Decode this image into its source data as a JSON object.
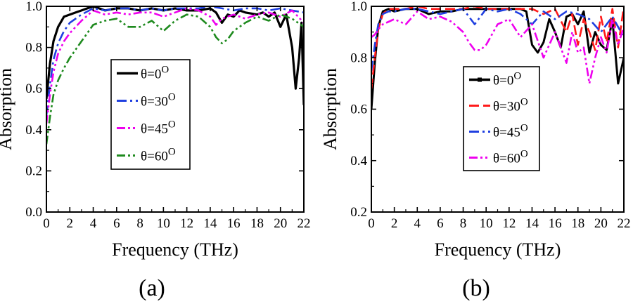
{
  "chart_data": [
    {
      "type": "line",
      "panel_label": "(a)",
      "xlabel": "Frequency (THz)",
      "ylabel": "Absorption",
      "xlim": [
        0,
        22
      ],
      "ylim": [
        0.0,
        1.0
      ],
      "xticks": [
        0,
        2,
        4,
        6,
        8,
        10,
        12,
        14,
        16,
        18,
        20,
        22
      ],
      "yticks": [
        0.0,
        0.2,
        0.4,
        0.6,
        0.8,
        1.0
      ],
      "ytick_labels": [
        "0.0",
        "0.2",
        "0.4",
        "0.6",
        "0.8",
        "1.0"
      ],
      "legend_position": "center-left",
      "series": [
        {
          "name": "θ=0",
          "superscript": "O",
          "color": "#000000",
          "dash": "",
          "width": 3.2,
          "x": [
            0,
            0.3,
            0.6,
            1,
            1.5,
            2,
            2.5,
            3,
            3.5,
            4,
            4.5,
            5,
            6,
            7,
            8,
            9,
            10,
            11,
            12,
            13,
            14,
            14.5,
            15,
            15.5,
            16,
            16.5,
            17,
            18,
            18.5,
            19,
            19.5,
            20,
            20.5,
            21,
            21.3,
            21.6,
            21.8,
            22
          ],
          "y": [
            0.55,
            0.72,
            0.83,
            0.9,
            0.95,
            0.96,
            0.97,
            0.98,
            0.99,
            1.0,
            0.99,
            0.98,
            0.99,
            0.99,
            0.98,
            0.99,
            0.98,
            0.99,
            0.98,
            0.98,
            0.99,
            0.97,
            0.92,
            0.96,
            0.95,
            0.98,
            0.97,
            0.96,
            0.97,
            0.95,
            0.97,
            0.9,
            0.96,
            0.8,
            0.6,
            0.75,
            0.92,
            0.52
          ]
        },
        {
          "name": "θ=30",
          "superscript": "O",
          "color": "#1f3fe0",
          "dash": "14 5 3 5",
          "width": 2.6,
          "x": [
            0,
            0.3,
            0.6,
            1,
            1.5,
            2,
            3,
            4,
            5,
            6,
            7,
            8,
            9,
            10,
            11,
            12,
            13,
            14,
            15,
            16,
            17,
            18,
            19,
            20,
            21,
            22
          ],
          "y": [
            0.47,
            0.62,
            0.74,
            0.82,
            0.88,
            0.92,
            0.96,
            0.99,
            0.98,
            0.99,
            0.99,
            0.98,
            0.99,
            0.98,
            0.99,
            0.99,
            0.99,
            1.0,
            0.99,
            0.98,
            0.99,
            0.99,
            0.98,
            0.99,
            0.98,
            0.97
          ]
        },
        {
          "name": "θ=45",
          "superscript": "O",
          "color": "#ee00ee",
          "dash": "12 4 3 4 3 4",
          "width": 2.6,
          "x": [
            0,
            0.3,
            0.6,
            1,
            1.5,
            2,
            3,
            4,
            5,
            6,
            7,
            8,
            9,
            10,
            11,
            12,
            13,
            14,
            14.5,
            15,
            16,
            17,
            18,
            19,
            20,
            21,
            22
          ],
          "y": [
            0.43,
            0.57,
            0.68,
            0.77,
            0.83,
            0.87,
            0.93,
            0.98,
            0.96,
            0.97,
            0.96,
            0.97,
            0.97,
            0.95,
            0.97,
            0.99,
            0.98,
            0.95,
            0.91,
            0.94,
            0.96,
            0.94,
            0.96,
            0.97,
            0.95,
            0.98,
            0.92
          ]
        },
        {
          "name": "θ=60",
          "superscript": "O",
          "color": "#1e8a1e",
          "dash": "12 4 3 4 3 4",
          "width": 2.6,
          "x": [
            0,
            0.3,
            0.6,
            1,
            1.5,
            2,
            3,
            4,
            5,
            6,
            7,
            8,
            9,
            10,
            11,
            12,
            13,
            14,
            14.5,
            15,
            15.5,
            16,
            17,
            18,
            19,
            20,
            21,
            22
          ],
          "y": [
            0.33,
            0.46,
            0.57,
            0.64,
            0.7,
            0.75,
            0.83,
            0.91,
            0.93,
            0.94,
            0.9,
            0.9,
            0.93,
            0.88,
            0.93,
            0.96,
            0.95,
            0.9,
            0.85,
            0.82,
            0.84,
            0.88,
            0.92,
            0.95,
            0.93,
            0.96,
            0.94,
            0.9
          ]
        }
      ]
    },
    {
      "type": "line",
      "panel_label": "(b)",
      "xlabel": "Frequency (THz)",
      "ylabel": "Absorption",
      "xlim": [
        0,
        22
      ],
      "ylim": [
        0.2,
        1.0
      ],
      "xticks": [
        0,
        2,
        4,
        6,
        8,
        10,
        12,
        14,
        16,
        18,
        20,
        22
      ],
      "yticks": [
        0.2,
        0.4,
        0.6,
        0.8,
        1.0
      ],
      "ytick_labels": [
        "0.2",
        "0.4",
        "0.6",
        "0.8",
        "1.0"
      ],
      "legend_position": "center-left",
      "series": [
        {
          "name": "θ=0",
          "superscript": "O",
          "color": "#000000",
          "dash": "",
          "width": 3.0,
          "marker": "square",
          "x": [
            0,
            0.3,
            0.6,
            1,
            1.5,
            2,
            3,
            4,
            5,
            6,
            7,
            8,
            9,
            10,
            11,
            12,
            13,
            13.5,
            14,
            14.5,
            15,
            15.5,
            16,
            16.5,
            17,
            17.5,
            18,
            18.5,
            19,
            19.5,
            20,
            20.5,
            21,
            21.5,
            22
          ],
          "y": [
            0.6,
            0.78,
            0.92,
            0.98,
            0.99,
            0.98,
            0.99,
            0.99,
            0.97,
            0.98,
            0.98,
            0.99,
            0.99,
            0.99,
            0.99,
            0.99,
            0.99,
            0.98,
            0.85,
            0.82,
            0.86,
            0.95,
            0.9,
            0.84,
            0.96,
            0.97,
            0.93,
            0.98,
            0.82,
            0.9,
            0.85,
            0.83,
            0.95,
            0.7,
            0.8
          ]
        },
        {
          "name": "θ=30",
          "superscript": "O",
          "color": "#ff1a1a",
          "dash": "14 6",
          "width": 2.6,
          "x": [
            0,
            0.3,
            0.6,
            1,
            1.5,
            2,
            3,
            4,
            5,
            6,
            7,
            8,
            9,
            10,
            11,
            12,
            13,
            14,
            15,
            16,
            17,
            17.5,
            18,
            18.5,
            19,
            19.5,
            20,
            20.5,
            21,
            21.5,
            22
          ],
          "y": [
            0.68,
            0.8,
            0.91,
            0.97,
            0.99,
            0.99,
            0.99,
            1.0,
            0.99,
            0.99,
            0.99,
            0.99,
            1.0,
            0.99,
            0.99,
            0.99,
            0.99,
            0.99,
            0.97,
            0.99,
            0.9,
            0.97,
            0.85,
            0.95,
            0.9,
            0.83,
            0.96,
            0.86,
            0.99,
            0.84,
            1.0
          ]
        },
        {
          "name": "θ=45",
          "superscript": "O",
          "color": "#1f3fe0",
          "dash": "14 5 3 5",
          "width": 2.6,
          "x": [
            0,
            0.3,
            0.6,
            1,
            1.5,
            2,
            3,
            4,
            5,
            6,
            7,
            8,
            9,
            10,
            11,
            12,
            13,
            14,
            15,
            16,
            17,
            18,
            19,
            20,
            21,
            22
          ],
          "y": [
            0.75,
            0.85,
            0.93,
            0.97,
            0.98,
            0.98,
            0.99,
            0.99,
            0.98,
            0.97,
            0.98,
            0.99,
            0.93,
            0.99,
            0.98,
            0.99,
            0.97,
            0.93,
            0.98,
            0.95,
            0.98,
            0.97,
            0.95,
            0.9,
            0.96,
            0.88
          ]
        },
        {
          "name": "θ=60",
          "superscript": "O",
          "color": "#ee00ee",
          "dash": "12 4 3 4 3 4",
          "width": 2.6,
          "x": [
            0,
            0.3,
            0.6,
            1,
            1.5,
            2,
            3,
            4,
            5,
            6,
            7,
            8,
            8.5,
            9,
            9.5,
            10,
            11,
            12,
            13,
            14,
            15,
            16,
            17,
            17.5,
            18,
            18.5,
            19,
            19.5,
            20,
            20.5,
            21,
            21.5,
            22
          ],
          "y": [
            0.88,
            0.89,
            0.91,
            0.93,
            0.94,
            0.95,
            0.93,
            0.98,
            0.95,
            0.96,
            0.94,
            0.9,
            0.86,
            0.83,
            0.83,
            0.85,
            0.93,
            0.95,
            0.88,
            0.93,
            0.8,
            0.9,
            0.78,
            0.9,
            0.82,
            0.84,
            0.7,
            0.8,
            0.88,
            0.82,
            0.95,
            0.85,
            0.92
          ]
        }
      ]
    }
  ]
}
